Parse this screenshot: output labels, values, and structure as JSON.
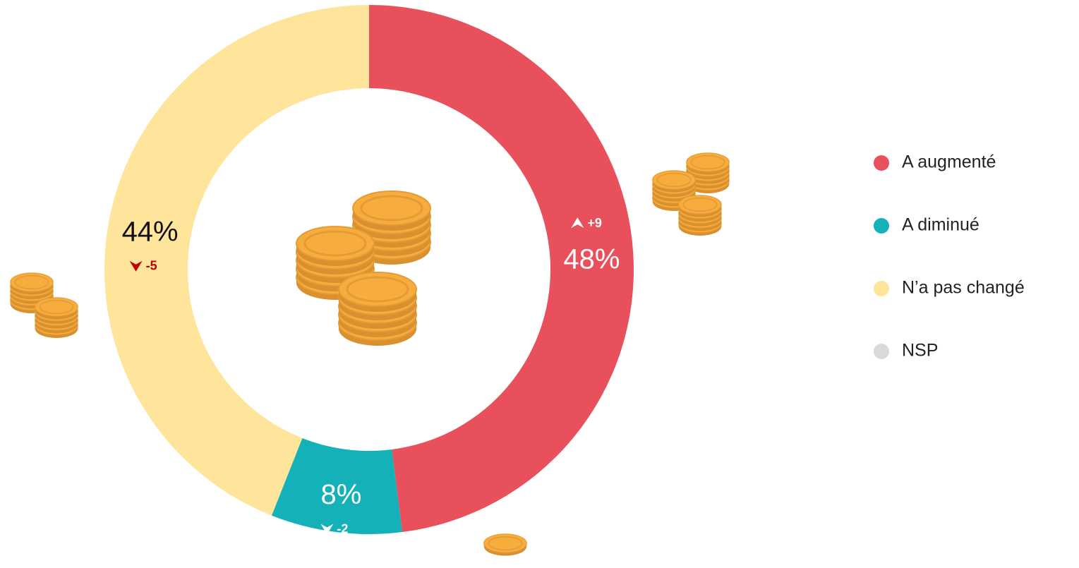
{
  "chart_data": {
    "type": "donut",
    "categories": [
      "A augmenté",
      "A diminué",
      "N’a pas changé",
      "NSP"
    ],
    "values": [
      48,
      8,
      44,
      0
    ],
    "value_labels": [
      "48%",
      "8%",
      "44%",
      null
    ],
    "changes": [
      9,
      -2,
      -5,
      null
    ],
    "change_labels": [
      "+9",
      "-2",
      "-5",
      null
    ],
    "colors": [
      "#e8505b",
      "#14b1b8",
      "#fee59b",
      "#d9d9d9"
    ],
    "legend": "right"
  }
}
